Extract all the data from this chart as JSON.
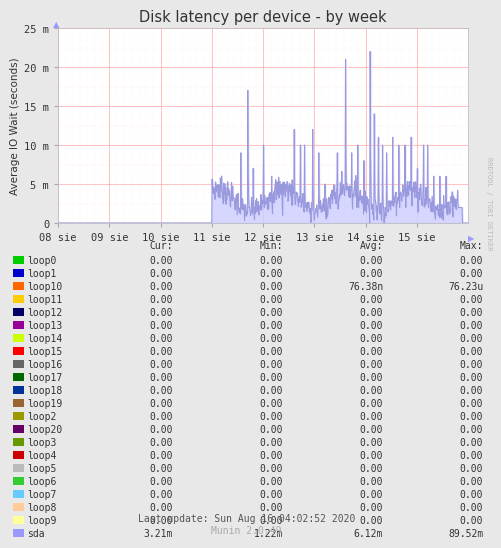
{
  "title": "Disk latency per device - by week",
  "ylabel": "Average IO Wait (seconds)",
  "bg_color": "#e8e8e8",
  "plot_bg_color": "#ffffff",
  "grid_color_major": "#ff9999",
  "ytick_labels": [
    "0",
    "5 m",
    "10 m",
    "15 m",
    "20 m",
    "25 m"
  ],
  "ytick_values": [
    0,
    0.005,
    0.01,
    0.015,
    0.02,
    0.025
  ],
  "ylim": [
    0,
    0.025
  ],
  "xtick_labels": [
    "08 sie",
    "09 sie",
    "10 sie",
    "11 sie",
    "12 sie",
    "13 sie",
    "14 sie",
    "15 sie"
  ],
  "line_color": "#9999dd",
  "line_color_fill": "#ccccff",
  "sidebar_text": "RRDTOOL / TOBI OETIKER",
  "footer_text": "Last update: Sun Aug 16 04:02:52 2020",
  "munin_text": "Munin 2.0.49",
  "legend_items": [
    {
      "label": "loop0",
      "color": "#00cc00"
    },
    {
      "label": "loop1",
      "color": "#0000cc"
    },
    {
      "label": "loop10",
      "color": "#ff6600"
    },
    {
      "label": "loop11",
      "color": "#ffcc00"
    },
    {
      "label": "loop12",
      "color": "#000066"
    },
    {
      "label": "loop13",
      "color": "#990099"
    },
    {
      "label": "loop14",
      "color": "#ccff00"
    },
    {
      "label": "loop15",
      "color": "#ff0000"
    },
    {
      "label": "loop16",
      "color": "#666666"
    },
    {
      "label": "loop17",
      "color": "#006600"
    },
    {
      "label": "loop18",
      "color": "#003399"
    },
    {
      "label": "loop19",
      "color": "#996633"
    },
    {
      "label": "loop2",
      "color": "#999900"
    },
    {
      "label": "loop20",
      "color": "#660066"
    },
    {
      "label": "loop3",
      "color": "#669900"
    },
    {
      "label": "loop4",
      "color": "#cc0000"
    },
    {
      "label": "loop5",
      "color": "#bbbbbb"
    },
    {
      "label": "loop6",
      "color": "#33cc33"
    },
    {
      "label": "loop7",
      "color": "#66ccff"
    },
    {
      "label": "loop8",
      "color": "#ffcc99"
    },
    {
      "label": "loop9",
      "color": "#ffff99"
    },
    {
      "label": "sda",
      "color": "#9999ff"
    }
  ],
  "table_headers": [
    "Cur:",
    "Min:",
    "Avg:",
    "Max:"
  ],
  "table_data": [
    [
      "0.00",
      "0.00",
      "0.00",
      "0.00"
    ],
    [
      "0.00",
      "0.00",
      "0.00",
      "0.00"
    ],
    [
      "0.00",
      "0.00",
      "76.38n",
      "76.23u"
    ],
    [
      "0.00",
      "0.00",
      "0.00",
      "0.00"
    ],
    [
      "0.00",
      "0.00",
      "0.00",
      "0.00"
    ],
    [
      "0.00",
      "0.00",
      "0.00",
      "0.00"
    ],
    [
      "0.00",
      "0.00",
      "0.00",
      "0.00"
    ],
    [
      "0.00",
      "0.00",
      "0.00",
      "0.00"
    ],
    [
      "0.00",
      "0.00",
      "0.00",
      "0.00"
    ],
    [
      "0.00",
      "0.00",
      "0.00",
      "0.00"
    ],
    [
      "0.00",
      "0.00",
      "0.00",
      "0.00"
    ],
    [
      "0.00",
      "0.00",
      "0.00",
      "0.00"
    ],
    [
      "0.00",
      "0.00",
      "0.00",
      "0.00"
    ],
    [
      "0.00",
      "0.00",
      "0.00",
      "0.00"
    ],
    [
      "0.00",
      "0.00",
      "0.00",
      "0.00"
    ],
    [
      "0.00",
      "0.00",
      "0.00",
      "0.00"
    ],
    [
      "0.00",
      "0.00",
      "0.00",
      "0.00"
    ],
    [
      "0.00",
      "0.00",
      "0.00",
      "0.00"
    ],
    [
      "0.00",
      "0.00",
      "0.00",
      "0.00"
    ],
    [
      "0.00",
      "0.00",
      "0.00",
      "0.00"
    ],
    [
      "0.00",
      "0.00",
      "0.00",
      "0.00"
    ],
    [
      "3.21m",
      "1.22m",
      "6.12m",
      "89.52m"
    ]
  ]
}
